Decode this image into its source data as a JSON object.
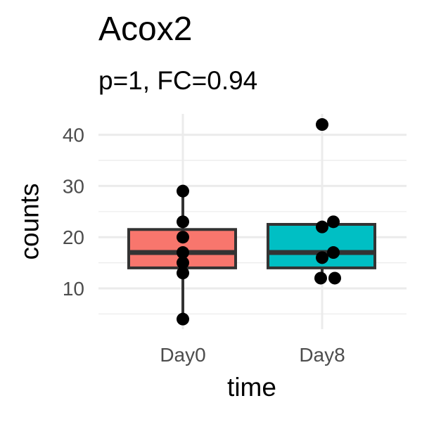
{
  "chart_data": {
    "type": "box",
    "title": "Acox2",
    "subtitle": "p=1, FC=0.94",
    "xlabel": "time",
    "ylabel": "counts",
    "categories": [
      "Day0",
      "Day8"
    ],
    "ylim": [
      2,
      44
    ],
    "yticks": [
      10,
      20,
      30,
      40
    ],
    "grid": true,
    "boxes": [
      {
        "category": "Day0",
        "color": "#F8766D",
        "whisker_low": 4,
        "q1": 14,
        "median": 17,
        "q3": 21.5,
        "whisker_high": 29,
        "points": [
          29,
          23,
          20,
          17,
          15,
          13,
          4
        ]
      },
      {
        "category": "Day8",
        "color": "#00BFC4",
        "whisker_low": 12,
        "q1": 14,
        "median": 17,
        "q3": 22.5,
        "whisker_high": 23,
        "points": [
          42,
          23,
          22,
          17,
          16,
          12,
          12
        ]
      }
    ]
  }
}
